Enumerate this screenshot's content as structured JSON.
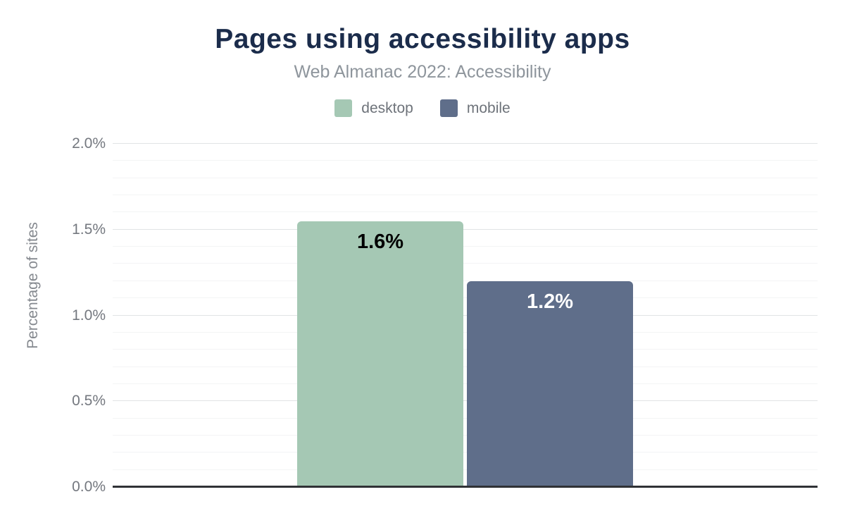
{
  "header": {
    "title": "Pages using accessibility apps",
    "subtitle": "Web Almanac 2022: Accessibility"
  },
  "legend": {
    "items": [
      {
        "label": "desktop",
        "color": "#a5c8b4"
      },
      {
        "label": "mobile",
        "color": "#5f6e8a"
      }
    ]
  },
  "axes": {
    "y_title": "Percentage of sites",
    "y_ticks": [
      "0.0%",
      "0.5%",
      "1.0%",
      "1.5%",
      "2.0%"
    ]
  },
  "chart_data": {
    "type": "bar",
    "title": "Pages using accessibility apps",
    "subtitle": "Web Almanac 2022: Accessibility",
    "categories": [
      ""
    ],
    "series": [
      {
        "name": "desktop",
        "values": [
          1.55
        ],
        "data_labels": [
          "1.6%"
        ],
        "color": "#a5c8b4",
        "label_color": "#000000"
      },
      {
        "name": "mobile",
        "values": [
          1.2
        ],
        "data_labels": [
          "1.2%"
        ],
        "color": "#5f6e8a",
        "label_color": "#ffffff"
      }
    ],
    "xlabel": "",
    "ylabel": "Percentage of sites",
    "ylim": [
      0,
      2.0
    ],
    "y_major_step": 0.5,
    "y_minor_step": 0.1,
    "grid": true,
    "legend_position": "top",
    "axis_line_color": "#303236"
  },
  "colors": {
    "background": "#ffffff",
    "title": "#1b2c4b",
    "subtitle": "#8e959c",
    "tick_label": "#74787f",
    "grid_major": "#e1e3e5",
    "grid_minor": "#f3f4f5"
  }
}
